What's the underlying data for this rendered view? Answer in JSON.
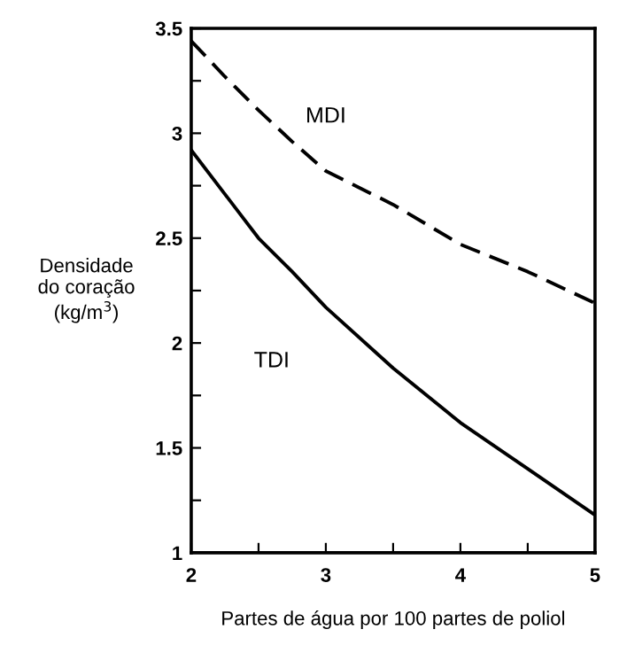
{
  "chart_data": {
    "type": "line",
    "xlabel": "Partes de água por 100 partes de poliol",
    "ylabel": "Densidade\ndo coração\n(kg/m$^{3}$)",
    "xlim": [
      2,
      5
    ],
    "ylim": [
      1,
      3.5
    ],
    "xticks": [
      2,
      {
        "value": 2.5,
        "label": null
      },
      3,
      {
        "value": 3.5,
        "label": null
      },
      4,
      {
        "value": 4.5,
        "label": null
      },
      5
    ],
    "yticks": [
      1,
      {
        "value": 1.25,
        "label": null
      },
      1.5,
      {
        "value": 1.75,
        "label": null
      },
      2,
      {
        "value": 2.25,
        "label": null
      },
      2.5,
      {
        "value": 2.75,
        "label": null
      },
      3,
      {
        "value": 3.25,
        "label": null
      },
      3.5
    ],
    "grid": false,
    "legend": false,
    "marker": "none",
    "series": [
      {
        "name": "MDI",
        "color": "#000000",
        "line_style": "dashed",
        "x": [
          2,
          2.25,
          2.5,
          2.75,
          3,
          3.5,
          4,
          4.5,
          5
        ],
        "values": [
          3.44,
          3.27,
          3.11,
          2.96,
          2.82,
          2.66,
          2.47,
          2.34,
          2.19
        ]
      },
      {
        "name": "TDI",
        "color": "#000000",
        "line_style": "solid",
        "x": [
          2,
          2.25,
          2.5,
          2.75,
          3,
          3.5,
          4,
          4.5,
          5
        ],
        "values": [
          2.92,
          2.71,
          2.5,
          2.34,
          2.17,
          1.88,
          1.62,
          1.4,
          1.18
        ]
      }
    ]
  }
}
